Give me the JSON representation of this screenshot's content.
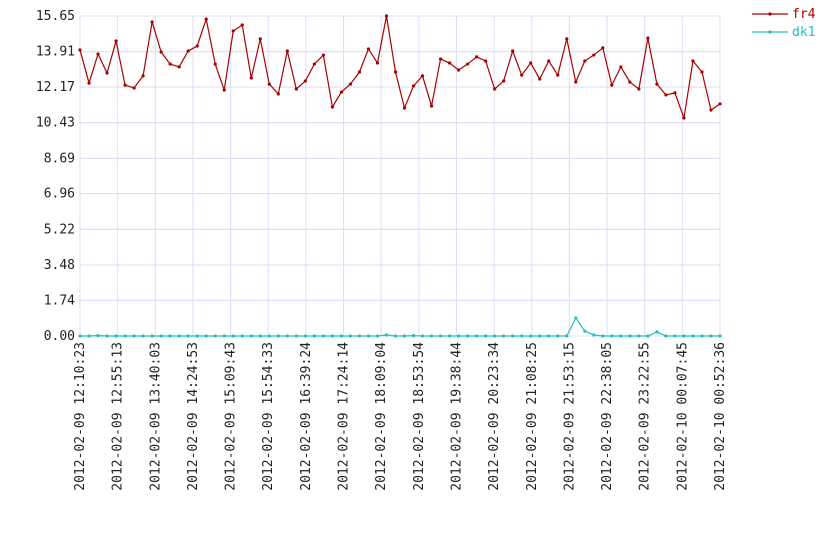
{
  "chart_data": {
    "type": "line",
    "x": [
      0,
      1,
      2,
      3,
      4,
      5,
      6,
      7,
      8,
      9,
      10,
      11,
      12,
      13,
      14,
      15,
      16,
      17,
      18,
      19,
      20,
      21,
      22,
      23,
      24,
      25,
      26,
      27,
      28,
      29,
      30,
      31,
      32,
      33,
      34,
      35,
      36,
      37,
      38,
      39,
      40,
      41,
      42,
      43,
      44,
      45,
      46,
      47,
      48,
      49,
      50,
      51,
      52,
      53,
      54,
      55,
      56,
      57,
      58,
      59,
      60,
      61,
      62,
      63,
      64,
      65,
      66,
      67,
      68,
      69,
      70,
      71
    ],
    "series": [
      {
        "name": "fr4",
        "color": "#aa0000",
        "values": [
          13.99,
          12.37,
          13.79,
          12.86,
          14.43,
          12.27,
          12.13,
          12.72,
          15.36,
          13.89,
          13.3,
          13.16,
          13.94,
          14.18,
          15.5,
          13.3,
          12.03,
          14.92,
          15.21,
          12.62,
          14.53,
          12.32,
          11.84,
          13.94,
          12.08,
          12.47,
          13.3,
          13.74,
          11.2,
          11.93,
          12.32,
          12.91,
          14.04,
          13.35,
          15.65,
          12.91,
          11.15,
          12.23,
          12.72,
          11.25,
          13.55,
          13.35,
          13.01,
          13.3,
          13.65,
          13.45,
          12.08,
          12.47,
          13.94,
          12.76,
          13.35,
          12.57,
          13.45,
          12.76,
          14.53,
          12.42,
          13.45,
          13.74,
          14.09,
          12.27,
          13.16,
          12.42,
          12.08,
          14.57,
          12.32,
          11.79,
          11.89,
          10.66,
          13.45,
          12.91,
          11.05,
          11.35
        ]
      },
      {
        "name": "dk1",
        "color": "#22c0c0",
        "values": [
          0,
          0,
          0.02,
          0,
          0,
          0,
          0,
          0,
          0,
          0,
          0,
          0,
          0,
          0,
          0,
          0,
          0,
          0,
          0,
          0,
          0,
          0,
          0,
          0,
          0,
          0,
          0,
          0,
          0,
          0,
          0,
          0,
          0,
          0,
          0.05,
          0,
          0,
          0.02,
          0,
          0,
          0,
          0,
          0,
          0,
          0,
          0,
          0,
          0,
          0,
          0,
          0,
          0,
          0,
          0,
          0,
          0.88,
          0.24,
          0.05,
          0,
          0,
          0,
          0,
          0,
          0,
          0.2,
          0,
          0,
          0,
          0,
          0,
          0,
          0
        ]
      }
    ],
    "xlim": [
      0,
      71
    ],
    "xticks": [
      {
        "value": 0,
        "label": "2012-02-09 12:10:23"
      },
      {
        "value": 4.18,
        "label": "2012-02-09 12:55:13"
      },
      {
        "value": 8.35,
        "label": "2012-02-09 13:40:03"
      },
      {
        "value": 12.53,
        "label": "2012-02-09 14:24:53"
      },
      {
        "value": 16.71,
        "label": "2012-02-09 15:09:43"
      },
      {
        "value": 20.88,
        "label": "2012-02-09 15:54:33"
      },
      {
        "value": 25.06,
        "label": "2012-02-09 16:39:24"
      },
      {
        "value": 29.24,
        "label": "2012-02-09 17:24:14"
      },
      {
        "value": 33.41,
        "label": "2012-02-09 18:09:04"
      },
      {
        "value": 37.59,
        "label": "2012-02-09 18:53:54"
      },
      {
        "value": 41.76,
        "label": "2012-02-09 19:38:44"
      },
      {
        "value": 45.94,
        "label": "2012-02-09 20:23:34"
      },
      {
        "value": 50.12,
        "label": "2012-02-09 21:08:25"
      },
      {
        "value": 54.29,
        "label": "2012-02-09 21:53:15"
      },
      {
        "value": 58.47,
        "label": "2012-02-09 22:38:05"
      },
      {
        "value": 62.65,
        "label": "2012-02-09 23:22:55"
      },
      {
        "value": 66.82,
        "label": "2012-02-10 00:07:45"
      },
      {
        "value": 71,
        "label": "2012-02-10 00:52:36"
      }
    ],
    "ylim": [
      0,
      15.65
    ],
    "yticks": [
      {
        "value": 0,
        "label": "0.00"
      },
      1.74,
      3.48,
      5.22,
      6.96,
      8.69,
      10.43,
      12.17,
      13.91,
      15.65
    ],
    "grid": true,
    "legend": "top-right"
  }
}
